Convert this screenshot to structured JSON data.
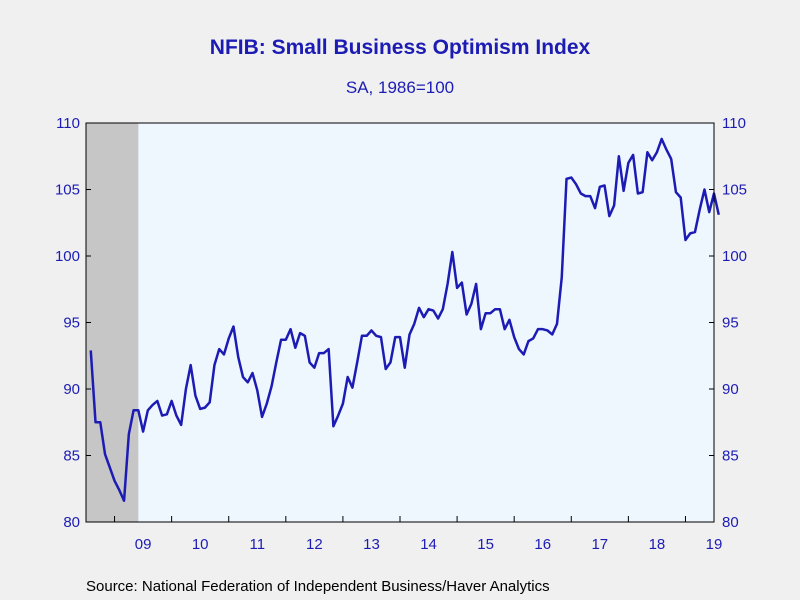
{
  "chart_data": {
    "type": "line",
    "title": "NFIB: Small Business Optimism Index",
    "subtitle": "SA, 1986=100",
    "source": "Source:  National Federation of Independent Business/Haver Analytics",
    "ylim": [
      80,
      110
    ],
    "yticks": [
      80,
      85,
      90,
      95,
      100,
      105,
      110
    ],
    "x_start": "2008-08",
    "xlim": [
      "2008-07",
      "2019-07"
    ],
    "x_tick_labels": [
      "09",
      "10",
      "11",
      "12",
      "13",
      "14",
      "15",
      "16",
      "17",
      "18",
      "19"
    ],
    "recession": {
      "start": "2008-07",
      "end": "2009-06"
    },
    "grid": false,
    "series": [
      {
        "values": [
          92.9,
          87.5,
          87.5,
          85.1,
          84.1,
          83.1,
          82.4,
          81.6,
          86.6,
          88.4,
          88.4,
          86.8,
          88.4,
          88.8,
          89.1,
          88.0,
          88.1,
          89.1,
          88.0,
          87.3,
          90.0,
          91.8,
          89.5,
          88.5,
          88.6,
          89.0,
          91.8,
          93.0,
          92.6,
          93.8,
          94.7,
          92.4,
          90.9,
          90.5,
          91.2,
          89.9,
          87.9,
          88.9,
          90.2,
          92.0,
          93.7,
          93.7,
          94.5,
          93.1,
          94.2,
          94.0,
          92.0,
          91.6,
          92.7,
          92.7,
          93.0,
          87.2,
          88.0,
          88.9,
          90.9,
          90.1,
          92.0,
          94.0,
          94.0,
          94.4,
          94.0,
          93.9,
          91.5,
          92.0,
          93.9,
          93.9,
          91.6,
          94.1,
          94.9,
          96.1,
          95.4,
          96.0,
          95.9,
          95.3,
          96.0,
          97.9,
          100.3,
          97.6,
          98.0,
          95.6,
          96.4,
          97.9,
          94.5,
          95.7,
          95.7,
          96.0,
          96.0,
          94.5,
          95.2,
          93.9,
          93.0,
          92.6,
          93.6,
          93.8,
          94.5,
          94.5,
          94.4,
          94.1,
          94.9,
          98.4,
          105.8,
          105.9,
          105.4,
          104.7,
          104.5,
          104.5,
          103.6,
          105.2,
          105.3,
          103.0,
          103.8,
          107.5,
          104.9,
          107.0,
          107.6,
          104.7,
          104.8,
          107.8,
          107.2,
          107.8,
          108.8,
          108.0,
          107.3,
          104.8,
          104.4,
          101.2,
          101.7,
          101.8,
          103.5,
          105.0,
          103.3,
          104.7,
          103.1
        ]
      }
    ]
  },
  "colors": {
    "line": "#1c1cb4",
    "plot_background": "#eef6fe",
    "recession_shade": "#c6c6c6",
    "axis": "#000000"
  }
}
